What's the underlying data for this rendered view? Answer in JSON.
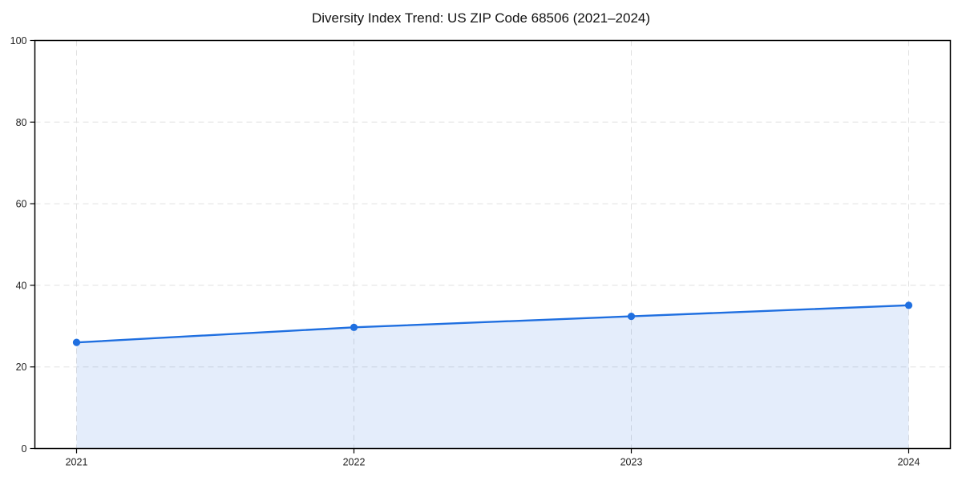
{
  "page": {
    "background": "#ffffff"
  },
  "chart_data": {
    "type": "line",
    "title": "Diversity Index Trend: US ZIP Code 68506 (2021–2024)",
    "categories": [
      "2021",
      "2022",
      "2023",
      "2024"
    ],
    "series": [
      {
        "name": "Diversity Index",
        "values": [
          26.0,
          29.7,
          32.4,
          35.1
        ]
      }
    ],
    "xlabel": "",
    "ylabel": "",
    "ylim": [
      0,
      100
    ],
    "yticks": [
      0,
      20,
      40,
      60,
      80,
      100
    ],
    "grid": true,
    "grid_style": "dashed",
    "legend_position": "none",
    "marker": "circle",
    "area_fill": true,
    "colors": {
      "line": "#1f6fe0",
      "marker": "#1f6fe0",
      "fill": "#1f6fe0",
      "fill_opacity": 0.12,
      "grid": "#e0e0e0",
      "axis": "#000000",
      "text": "#222222",
      "background": "#ffffff"
    }
  }
}
